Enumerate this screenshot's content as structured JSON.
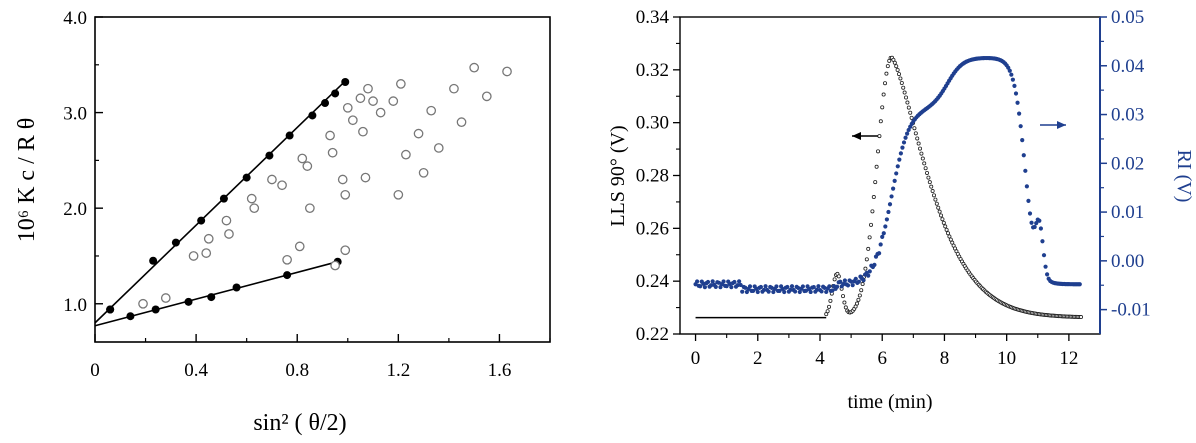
{
  "chart_data": [
    {
      "type": "scatter",
      "title": "",
      "xlabel": "sin² ( θ/2)",
      "ylabel": "10⁶ K c / R θ",
      "xlim": [
        0,
        1.8
      ],
      "ylim": [
        0.6,
        4.0
      ],
      "xticks": [
        "0",
        "0.4",
        "0.8",
        "1.2",
        "1.6"
      ],
      "yticks": [
        "1.0",
        "2.0",
        "3.0",
        "4.0"
      ],
      "grid": false,
      "fit_lines": [
        {
          "x": [
            0,
            0.99
          ],
          "y": [
            0.8,
            3.33
          ]
        },
        {
          "x": [
            0,
            0.96
          ],
          "y": [
            0.77,
            1.44
          ]
        }
      ],
      "series": [
        {
          "marker": "filled-circle",
          "points": [
            [
              0.06,
              0.94
            ],
            [
              0.23,
              1.45
            ],
            [
              0.32,
              1.64
            ],
            [
              0.42,
              1.87
            ],
            [
              0.51,
              2.1
            ],
            [
              0.6,
              2.32
            ],
            [
              0.69,
              2.55
            ],
            [
              0.77,
              2.76
            ],
            [
              0.86,
              2.97
            ],
            [
              0.91,
              3.1
            ],
            [
              0.95,
              3.2
            ],
            [
              0.99,
              3.32
            ]
          ]
        },
        {
          "marker": "filled-circle",
          "points": [
            [
              0.06,
              0.94
            ],
            [
              0.14,
              0.87
            ],
            [
              0.24,
              0.94
            ],
            [
              0.37,
              1.02
            ],
            [
              0.46,
              1.07
            ],
            [
              0.56,
              1.17
            ],
            [
              0.76,
              1.3
            ],
            [
              0.96,
              1.44
            ]
          ]
        },
        {
          "marker": "open-circle",
          "points": [
            [
              0.19,
              1.0
            ],
            [
              0.28,
              1.06
            ],
            [
              0.44,
              1.53
            ],
            [
              0.53,
              1.73
            ],
            [
              0.63,
              2.0
            ],
            [
              0.74,
              2.24
            ],
            [
              0.84,
              2.44
            ],
            [
              0.94,
              2.58
            ],
            [
              1.06,
              2.8
            ],
            [
              1.13,
              3.0
            ],
            [
              1.18,
              3.12
            ],
            [
              1.21,
              3.3
            ],
            [
              0.39,
              1.5
            ],
            [
              0.45,
              1.68
            ],
            [
              0.52,
              1.87
            ],
            [
              0.62,
              2.1
            ],
            [
              0.7,
              2.3
            ],
            [
              0.82,
              2.52
            ],
            [
              0.93,
              2.76
            ],
            [
              1.02,
              2.92
            ],
            [
              1.1,
              3.12
            ],
            [
              0.76,
              1.46
            ],
            [
              0.81,
              1.6
            ],
            [
              0.95,
              1.4
            ],
            [
              0.99,
              1.56
            ],
            [
              0.99,
              2.14
            ],
            [
              1.07,
              2.32
            ],
            [
              1.2,
              2.14
            ],
            [
              1.23,
              2.56
            ],
            [
              1.28,
              2.78
            ],
            [
              1.3,
              2.37
            ],
            [
              1.36,
              2.63
            ],
            [
              1.33,
              3.02
            ],
            [
              1.42,
              3.25
            ],
            [
              1.45,
              2.9
            ],
            [
              1.5,
              3.47
            ],
            [
              1.55,
              3.17
            ],
            [
              1.63,
              3.43
            ],
            [
              0.85,
              2.0
            ],
            [
              0.98,
              2.3
            ],
            [
              1.0,
              3.05
            ],
            [
              1.05,
              3.15
            ],
            [
              1.08,
              3.25
            ]
          ]
        }
      ]
    },
    {
      "type": "scatter",
      "title": "",
      "xlabel": "time (min)",
      "ylabel_left": "LLS 90° (V)",
      "ylabel_right": "RI (V)",
      "xlim": [
        -0.5,
        13
      ],
      "ylim_left": [
        0.22,
        0.34
      ],
      "ylim_right": [
        -0.015,
        0.05
      ],
      "xticks": [
        "0",
        "2",
        "4",
        "6",
        "8",
        "10",
        "12"
      ],
      "yticks_left": [
        "0.22",
        "0.24",
        "0.26",
        "0.28",
        "0.30",
        "0.32",
        "0.34"
      ],
      "yticks_right": [
        "-0.01",
        "0.00",
        "0.01",
        "0.02",
        "0.03",
        "0.04",
        "0.05"
      ],
      "colors": {
        "lls": "#222222",
        "ri": "#1f3f8f"
      },
      "series": [
        {
          "name": "",
          "axis": "left",
          "marker": "open-circle-small",
          "curve": "LLS"
        },
        {
          "name": "",
          "axis": "right",
          "marker": "filled-diamond-small",
          "curve": "RI"
        }
      ]
    }
  ]
}
